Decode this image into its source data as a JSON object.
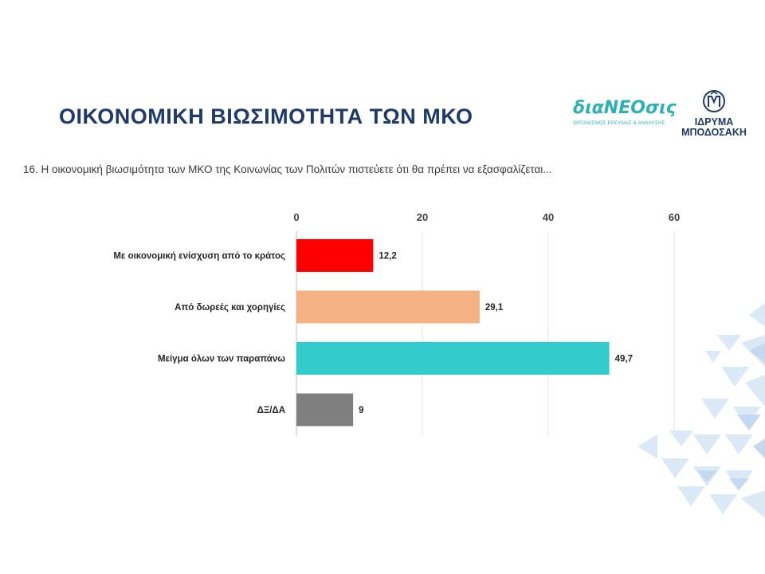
{
  "header": {
    "title": "ΟΙΚΟΝΟΜΙΚΗ ΒΙΩΣΙΜΟΤΗΤΑ ΤΩΝ ΜΚΟ",
    "question": "16. Η οικονομική βιωσιμότητα των ΜΚΟ της Κοινωνίας των Πολιτών πιστεύετε ότι θα πρέπει να εξασφαλίζεται..."
  },
  "logos": {
    "dianeosis": {
      "name": "διαNEOσις",
      "tagline": "ΟΡΓΑΝΙΣΜΟΣ ΕΡΕΥΝΑΣ & ΑΝΑΛΥΣΗΣ"
    },
    "bodossaki": {
      "line1": "ΙΔΡΥΜΑ",
      "line2": "ΜΠΟΔΟΣΑΚΗ"
    }
  },
  "chart_data": {
    "type": "bar",
    "orientation": "horizontal",
    "categories": [
      "Με οικονομική ενίσχυση από το κράτος",
      "Από δωρεές και χορηγίες",
      "Μείγμα όλων των παραπάνω",
      "ΔΞ/ΔΑ"
    ],
    "values": [
      12.2,
      29.1,
      49.7,
      9
    ],
    "value_labels": [
      "12,2",
      "29,1",
      "49,7",
      "9"
    ],
    "colors": [
      "#ff0000",
      "#f4b183",
      "#33cccc",
      "#7f7f7f"
    ],
    "xlim": [
      0,
      60
    ],
    "ticks": [
      0,
      20,
      40,
      60
    ],
    "tick_labels": [
      "0",
      "20",
      "40",
      "60"
    ],
    "axis_position": "top",
    "grid": true,
    "title": "",
    "xlabel": "",
    "ylabel": ""
  }
}
